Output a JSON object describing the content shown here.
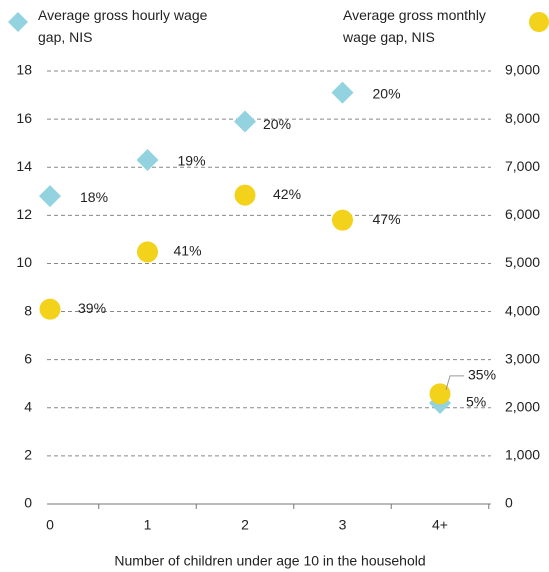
{
  "chart_data": {
    "type": "scatter",
    "x_label": "Number of children under age 10 in the household",
    "categories": [
      "0",
      "1",
      "2",
      "3",
      "4+"
    ],
    "series": [
      {
        "name": "Average gross hourly wage gap, NIS",
        "color": "#92d3df",
        "marker": "diamond",
        "axis": "y",
        "values": [
          12.8,
          14.3,
          15.9,
          17.1,
          4.2
        ],
        "point_labels": [
          "18%",
          "19%",
          "20%",
          "20%",
          "5%"
        ]
      },
      {
        "name": "Average gross monthly wage gap, NIS",
        "color": "#f2d21b",
        "marker": "circle",
        "axis": "y2",
        "values": [
          4050,
          5240,
          6420,
          5900,
          2290
        ],
        "point_labels": [
          "39%",
          "41%",
          "42%",
          "47%",
          "35%"
        ]
      }
    ],
    "ylim": [
      0,
      18
    ],
    "yticks": [
      0,
      2,
      4,
      6,
      8,
      10,
      12,
      14,
      16,
      18
    ],
    "y2lim": [
      0,
      9000
    ],
    "y2ticks": [
      0,
      {
        "value": 1000,
        "label": "1,000"
      },
      {
        "value": 2000,
        "label": "2,000"
      },
      {
        "value": 3000,
        "label": "3,000"
      },
      {
        "value": 4000,
        "label": "4,000"
      },
      {
        "value": 5000,
        "label": "5,000"
      },
      {
        "value": 6000,
        "label": "6,000"
      },
      {
        "value": 7000,
        "label": "7,000"
      },
      {
        "value": 8000,
        "label": "8,000"
      },
      {
        "value": 9000,
        "label": "9,000"
      }
    ],
    "grid": true
  }
}
